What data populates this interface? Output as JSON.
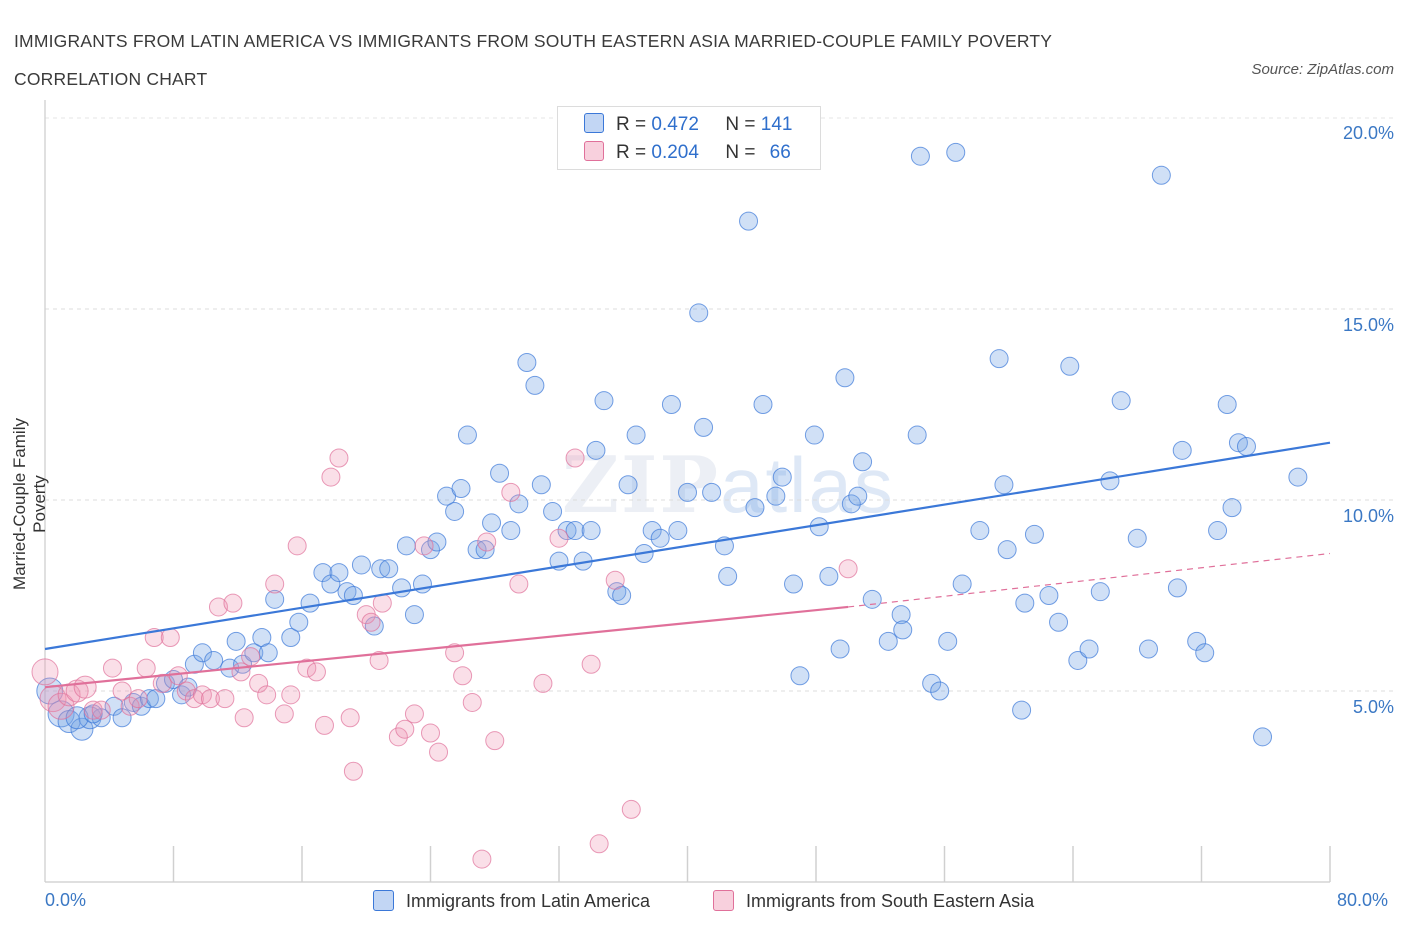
{
  "title_line1": "IMMIGRANTS FROM LATIN AMERICA VS IMMIGRANTS FROM SOUTH EASTERN ASIA MARRIED-COUPLE FAMILY POVERTY",
  "title_line2": "CORRELATION CHART",
  "source": "Source: ZipAtlas.com",
  "watermark": {
    "a": "ZIP",
    "b": "atlas"
  },
  "colors": {
    "blue": "#3b78d8",
    "blue_fill": "rgba(120,165,230,0.35)",
    "pink": "#e0709a",
    "pink_fill": "rgba(240,150,180,0.30)"
  },
  "legend": {
    "r_label": "R =",
    "n_label": "N =",
    "series1": {
      "r": "0.472",
      "n": "141"
    },
    "series2": {
      "r": "0.204",
      "n": "66"
    }
  },
  "chart_data": {
    "type": "scatter",
    "title": "IMMIGRANTS FROM LATIN AMERICA VS IMMIGRANTS FROM SOUTH EASTERN ASIA MARRIED-COUPLE FAMILY POVERTY CORRELATION CHART",
    "xlabel": "",
    "ylabel": "Married-Couple Family Poverty",
    "xlim": [
      0,
      80
    ],
    "ylim": [
      0,
      20.5
    ],
    "x_tick_labels": [
      "0.0%",
      "80.0%"
    ],
    "y_tick_labels": [
      "5.0%",
      "10.0%",
      "15.0%",
      "20.0%"
    ],
    "y_ticks": [
      5,
      10,
      15,
      20
    ],
    "series": [
      {
        "name": "Immigrants from Latin America",
        "color": "blue",
        "trend": {
          "x0": 0,
          "y0": 6.1,
          "x1": 80,
          "y1": 11.5
        },
        "points": [
          [
            0.3,
            5.0
          ],
          [
            1.0,
            4.4
          ],
          [
            1.5,
            4.2
          ],
          [
            2.3,
            4.0
          ],
          [
            2.8,
            4.3
          ],
          [
            3.5,
            4.3
          ],
          [
            4.3,
            4.6
          ],
          [
            4.8,
            4.3
          ],
          [
            5.5,
            4.7
          ],
          [
            6.0,
            4.6
          ],
          [
            6.5,
            4.8
          ],
          [
            6.9,
            4.8
          ],
          [
            7.5,
            5.2
          ],
          [
            8.0,
            5.3
          ],
          [
            8.5,
            4.9
          ],
          [
            8.9,
            5.1
          ],
          [
            9.3,
            5.7
          ],
          [
            9.8,
            6.0
          ],
          [
            10.5,
            5.8
          ],
          [
            11.5,
            5.6
          ],
          [
            11.9,
            6.3
          ],
          [
            12.3,
            5.7
          ],
          [
            13.0,
            6.0
          ],
          [
            13.5,
            6.4
          ],
          [
            13.9,
            6.0
          ],
          [
            14.3,
            7.4
          ],
          [
            15.3,
            6.4
          ],
          [
            15.8,
            6.8
          ],
          [
            16.5,
            7.3
          ],
          [
            17.3,
            8.1
          ],
          [
            17.8,
            7.8
          ],
          [
            18.3,
            8.1
          ],
          [
            18.8,
            7.6
          ],
          [
            19.2,
            7.5
          ],
          [
            19.7,
            8.3
          ],
          [
            20.5,
            6.7
          ],
          [
            20.9,
            8.2
          ],
          [
            21.4,
            8.2
          ],
          [
            22.2,
            7.7
          ],
          [
            22.5,
            8.8
          ],
          [
            23.0,
            7.0
          ],
          [
            23.5,
            7.8
          ],
          [
            24.0,
            8.7
          ],
          [
            24.4,
            8.9
          ],
          [
            25.0,
            10.1
          ],
          [
            25.5,
            9.7
          ],
          [
            25.9,
            10.3
          ],
          [
            26.3,
            11.7
          ],
          [
            26.9,
            8.7
          ],
          [
            27.4,
            8.7
          ],
          [
            27.8,
            9.4
          ],
          [
            28.3,
            10.7
          ],
          [
            29.0,
            9.2
          ],
          [
            29.5,
            9.9
          ],
          [
            30.0,
            13.6
          ],
          [
            30.5,
            13.0
          ],
          [
            30.9,
            10.4
          ],
          [
            31.6,
            9.7
          ],
          [
            32.0,
            8.4
          ],
          [
            32.5,
            9.2
          ],
          [
            33.0,
            9.2
          ],
          [
            33.5,
            8.4
          ],
          [
            34.0,
            9.2
          ],
          [
            34.3,
            11.3
          ],
          [
            34.8,
            12.6
          ],
          [
            35.6,
            7.6
          ],
          [
            35.9,
            7.5
          ],
          [
            36.3,
            10.4
          ],
          [
            36.8,
            11.7
          ],
          [
            37.3,
            8.6
          ],
          [
            37.8,
            9.2
          ],
          [
            38.3,
            9.0
          ],
          [
            39.0,
            12.5
          ],
          [
            39.4,
            9.2
          ],
          [
            40.0,
            10.2
          ],
          [
            40.7,
            14.9
          ],
          [
            41.0,
            11.9
          ],
          [
            41.5,
            10.2
          ],
          [
            42.3,
            8.8
          ],
          [
            42.5,
            8.0
          ],
          [
            43.8,
            17.3
          ],
          [
            44.2,
            9.8
          ],
          [
            44.7,
            12.5
          ],
          [
            45.5,
            10.1
          ],
          [
            45.9,
            10.6
          ],
          [
            46.6,
            7.8
          ],
          [
            47.0,
            5.4
          ],
          [
            47.9,
            11.7
          ],
          [
            48.2,
            9.3
          ],
          [
            48.8,
            8.0
          ],
          [
            49.5,
            6.1
          ],
          [
            49.8,
            13.2
          ],
          [
            50.2,
            9.9
          ],
          [
            50.6,
            10.1
          ],
          [
            50.9,
            11.0
          ],
          [
            51.5,
            7.4
          ],
          [
            52.5,
            6.3
          ],
          [
            53.3,
            7.0
          ],
          [
            53.4,
            6.6
          ],
          [
            54.3,
            11.7
          ],
          [
            54.5,
            19.0
          ],
          [
            55.2,
            5.2
          ],
          [
            55.7,
            5.0
          ],
          [
            56.7,
            19.1
          ],
          [
            56.2,
            6.3
          ],
          [
            57.1,
            7.8
          ],
          [
            58.2,
            9.2
          ],
          [
            59.4,
            13.7
          ],
          [
            59.7,
            10.4
          ],
          [
            59.9,
            8.7
          ],
          [
            60.8,
            4.5
          ],
          [
            61.0,
            7.3
          ],
          [
            61.6,
            9.1
          ],
          [
            62.5,
            7.5
          ],
          [
            63.1,
            6.8
          ],
          [
            63.8,
            13.5
          ],
          [
            64.3,
            5.8
          ],
          [
            65.0,
            6.1
          ],
          [
            65.7,
            7.6
          ],
          [
            66.3,
            10.5
          ],
          [
            67.0,
            12.6
          ],
          [
            68.0,
            9.0
          ],
          [
            68.7,
            6.1
          ],
          [
            69.5,
            18.5
          ],
          [
            70.5,
            7.7
          ],
          [
            70.8,
            11.3
          ],
          [
            71.7,
            6.3
          ],
          [
            72.2,
            6.0
          ],
          [
            73.0,
            9.2
          ],
          [
            73.6,
            12.5
          ],
          [
            73.9,
            9.8
          ],
          [
            74.3,
            11.5
          ],
          [
            74.8,
            11.4
          ],
          [
            75.8,
            3.8
          ],
          [
            78.0,
            10.6
          ],
          [
            2.0,
            4.3
          ],
          [
            3.0,
            4.4
          ]
        ]
      },
      {
        "name": "Immigrants from South Eastern Asia",
        "color": "pink",
        "trend": {
          "x0": 0,
          "y0": 5.1,
          "x1": 50,
          "y1": 7.2,
          "dash_x1": 80,
          "dash_y1": 8.6
        },
        "points": [
          [
            0.0,
            5.5
          ],
          [
            0.5,
            4.8
          ],
          [
            1.0,
            4.6
          ],
          [
            1.5,
            4.9
          ],
          [
            2.0,
            5.0
          ],
          [
            2.5,
            5.1
          ],
          [
            3.0,
            4.5
          ],
          [
            3.5,
            4.5
          ],
          [
            4.2,
            5.6
          ],
          [
            4.8,
            5.0
          ],
          [
            5.3,
            4.6
          ],
          [
            5.8,
            4.8
          ],
          [
            6.3,
            5.6
          ],
          [
            6.8,
            6.4
          ],
          [
            7.3,
            5.2
          ],
          [
            7.8,
            6.4
          ],
          [
            8.3,
            5.4
          ],
          [
            8.8,
            5.0
          ],
          [
            9.3,
            4.8
          ],
          [
            9.8,
            4.9
          ],
          [
            10.3,
            4.8
          ],
          [
            10.8,
            7.2
          ],
          [
            11.2,
            4.8
          ],
          [
            11.7,
            7.3
          ],
          [
            12.2,
            5.5
          ],
          [
            12.4,
            4.3
          ],
          [
            12.8,
            5.9
          ],
          [
            13.3,
            5.2
          ],
          [
            13.8,
            4.9
          ],
          [
            14.3,
            7.8
          ],
          [
            14.9,
            4.4
          ],
          [
            15.3,
            4.9
          ],
          [
            15.7,
            8.8
          ],
          [
            16.3,
            5.6
          ],
          [
            16.9,
            5.5
          ],
          [
            17.4,
            4.1
          ],
          [
            17.8,
            10.6
          ],
          [
            18.3,
            11.1
          ],
          [
            19.0,
            4.3
          ],
          [
            19.2,
            2.9
          ],
          [
            20.0,
            7.0
          ],
          [
            20.3,
            6.8
          ],
          [
            20.8,
            5.8
          ],
          [
            21.0,
            7.3
          ],
          [
            22.0,
            3.8
          ],
          [
            22.4,
            4.0
          ],
          [
            23.0,
            4.4
          ],
          [
            23.6,
            8.8
          ],
          [
            24.0,
            3.9
          ],
          [
            24.5,
            3.4
          ],
          [
            25.5,
            6.0
          ],
          [
            26.0,
            5.4
          ],
          [
            26.6,
            4.7
          ],
          [
            27.2,
            0.6
          ],
          [
            27.5,
            8.9
          ],
          [
            28.0,
            3.7
          ],
          [
            29.0,
            10.2
          ],
          [
            29.5,
            7.8
          ],
          [
            31.0,
            5.2
          ],
          [
            32.0,
            9.0
          ],
          [
            33.0,
            11.1
          ],
          [
            34.0,
            5.7
          ],
          [
            34.5,
            1.0
          ],
          [
            35.5,
            7.9
          ],
          [
            36.5,
            1.9
          ],
          [
            50.0,
            8.2
          ]
        ]
      }
    ]
  },
  "bottom_legend": {
    "item1": "Immigrants from Latin America",
    "item2": "Immigrants from South Eastern Asia"
  }
}
